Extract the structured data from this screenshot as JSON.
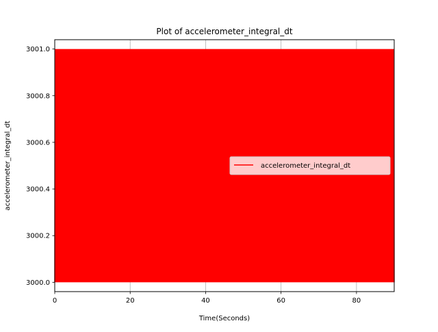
{
  "chart_data": {
    "type": "line",
    "title": "Plot of accelerometer_integral_dt",
    "xlabel": "Time(Seconds)",
    "ylabel": "accelerometer_integral_dt",
    "xlim": [
      0,
      90
    ],
    "ylim": [
      2999.96,
      3001.04
    ],
    "x_ticks": [
      0,
      20,
      40,
      60,
      80
    ],
    "x_tick_labels": [
      "0",
      "20",
      "40",
      "60",
      "80"
    ],
    "y_ticks": [
      3000.0,
      3000.2,
      3000.4,
      3000.6,
      3000.8,
      3001.0
    ],
    "y_tick_labels": [
      "3000.0",
      "3000.2",
      "3000.4",
      "3000.6",
      "3000.8",
      "3001.0"
    ],
    "grid": "x-axis only",
    "legend_position": "right",
    "series": [
      {
        "name": "accelerometer_integral_dt",
        "color": "#ff0000",
        "description_of_values": "oscillates rapidly between 3000.0 and 3001.0 across the full time range",
        "min": 3000.0,
        "max": 3001.0,
        "x_start": 0,
        "x_end": 90
      }
    ]
  }
}
